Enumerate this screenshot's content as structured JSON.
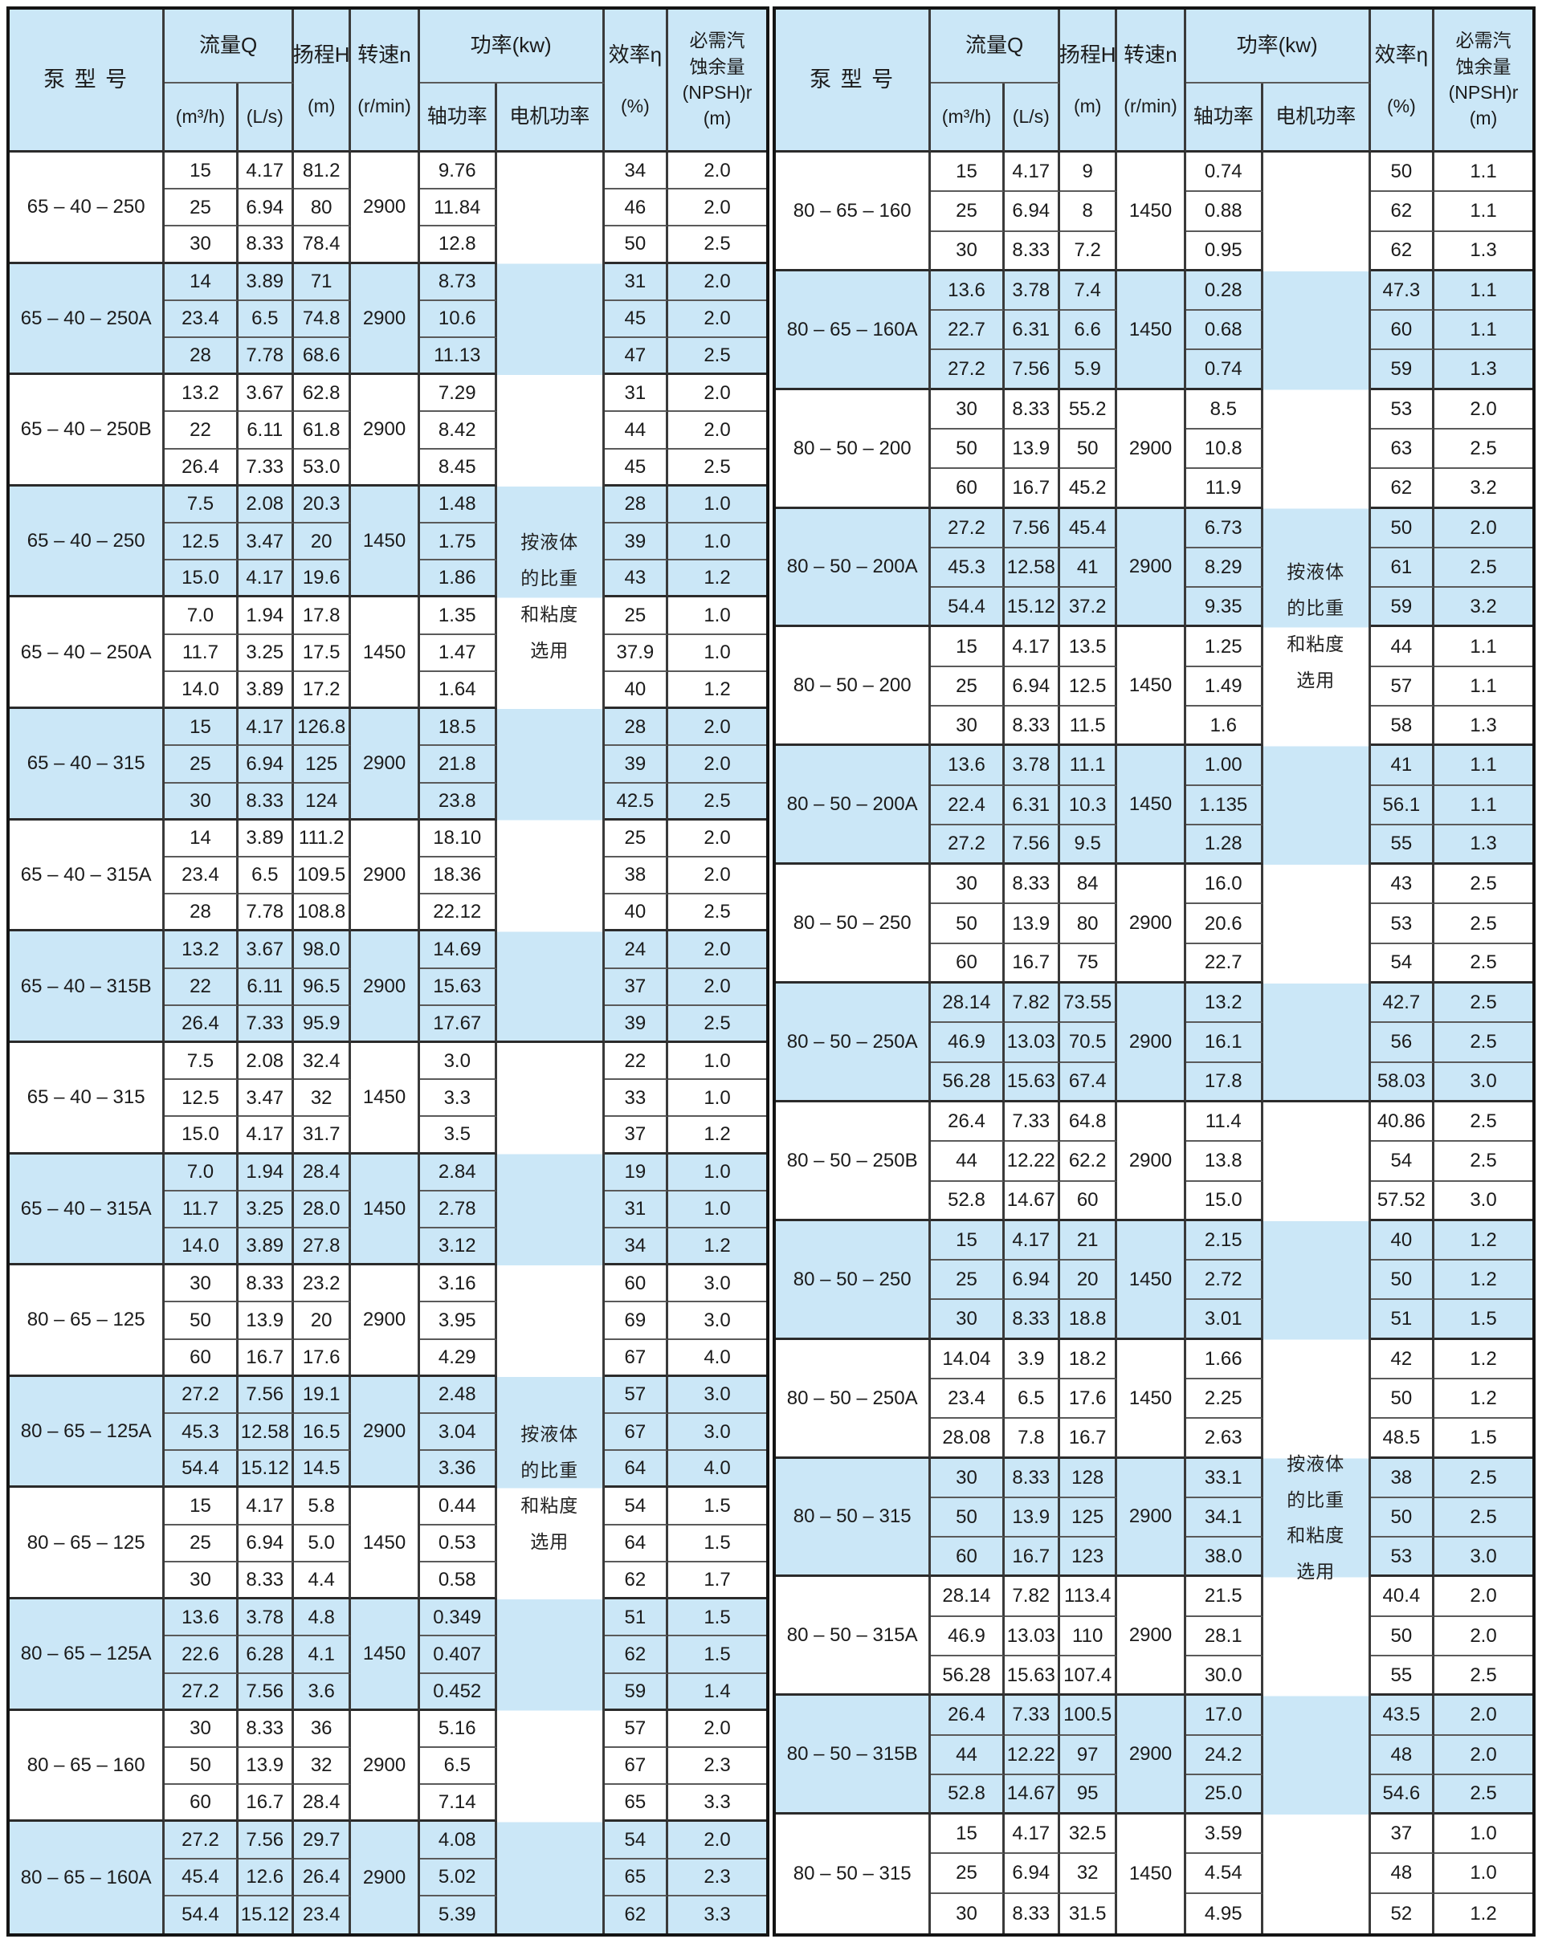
{
  "header": {
    "model": "泵 型 号",
    "flow": "流量Q",
    "flow_m3h": "(m³/h)",
    "flow_ls": "(L/s)",
    "head_title": "扬程H",
    "head_unit": "(m)",
    "speed_title": "转速n",
    "speed_unit": "(r/min)",
    "power": "功率(kw)",
    "shaft": "轴功率",
    "motor": "电机功率",
    "eff_title": "效率η",
    "eff_unit": "(%)",
    "npsh_lines": [
      "必需汽",
      "蚀余量",
      "(NPSH)r",
      "(m)"
    ]
  },
  "motor_note": "按液体的比重和粘度选用",
  "colors": {
    "band_blue": "#cbe7f7",
    "band_white": "#ffffff",
    "border_dark": "#2b2b2b",
    "text": "#1b1b1b"
  },
  "tables": [
    {
      "name": "left",
      "groups": [
        {
          "model": "65 – 40 – 250",
          "speed": "2900",
          "rows": [
            [
              "15",
              "4.17",
              "81.2",
              "9.76",
              "34",
              "2.0"
            ],
            [
              "25",
              "6.94",
              "80",
              "11.84",
              "46",
              "2.0"
            ],
            [
              "30",
              "8.33",
              "78.4",
              "12.8",
              "50",
              "2.5"
            ]
          ]
        },
        {
          "model": "65 – 40 – 250A",
          "speed": "2900",
          "rows": [
            [
              "14",
              "3.89",
              "71",
              "8.73",
              "31",
              "2.0"
            ],
            [
              "23.4",
              "6.5",
              "74.8",
              "10.6",
              "45",
              "2.0"
            ],
            [
              "28",
              "7.78",
              "68.6",
              "11.13",
              "47",
              "2.5"
            ]
          ]
        },
        {
          "model": "65 – 40 – 250B",
          "speed": "2900",
          "rows": [
            [
              "13.2",
              "3.67",
              "62.8",
              "7.29",
              "31",
              "2.0"
            ],
            [
              "22",
              "6.11",
              "61.8",
              "8.42",
              "44",
              "2.0"
            ],
            [
              "26.4",
              "7.33",
              "53.0",
              "8.45",
              "45",
              "2.5"
            ]
          ]
        },
        {
          "model": "65 – 40 – 250",
          "speed": "1450",
          "rows": [
            [
              "7.5",
              "2.08",
              "20.3",
              "1.48",
              "28",
              "1.0"
            ],
            [
              "12.5",
              "3.47",
              "20",
              "1.75",
              "39",
              "1.0"
            ],
            [
              "15.0",
              "4.17",
              "19.6",
              "1.86",
              "43",
              "1.2"
            ]
          ]
        },
        {
          "model": "65 – 40 – 250A",
          "speed": "1450",
          "rows": [
            [
              "7.0",
              "1.94",
              "17.8",
              "1.35",
              "25",
              "1.0"
            ],
            [
              "11.7",
              "3.25",
              "17.5",
              "1.47",
              "37.9",
              "1.0"
            ],
            [
              "14.0",
              "3.89",
              "17.2",
              "1.64",
              "40",
              "1.2"
            ]
          ]
        },
        {
          "model": "65 – 40 – 315",
          "speed": "2900",
          "rows": [
            [
              "15",
              "4.17",
              "126.8",
              "18.5",
              "28",
              "2.0"
            ],
            [
              "25",
              "6.94",
              "125",
              "21.8",
              "39",
              "2.0"
            ],
            [
              "30",
              "8.33",
              "124",
              "23.8",
              "42.5",
              "2.5"
            ]
          ]
        },
        {
          "model": "65 – 40 – 315A",
          "speed": "2900",
          "rows": [
            [
              "14",
              "3.89",
              "111.2",
              "18.10",
              "25",
              "2.0"
            ],
            [
              "23.4",
              "6.5",
              "109.5",
              "18.36",
              "38",
              "2.0"
            ],
            [
              "28",
              "7.78",
              "108.8",
              "22.12",
              "40",
              "2.5"
            ]
          ]
        },
        {
          "model": "65 – 40 – 315B",
          "speed": "2900",
          "rows": [
            [
              "13.2",
              "3.67",
              "98.0",
              "14.69",
              "24",
              "2.0"
            ],
            [
              "22",
              "6.11",
              "96.5",
              "15.63",
              "37",
              "2.0"
            ],
            [
              "26.4",
              "7.33",
              "95.9",
              "17.67",
              "39",
              "2.5"
            ]
          ]
        },
        {
          "model": "65 – 40 – 315",
          "speed": "1450",
          "rows": [
            [
              "7.5",
              "2.08",
              "32.4",
              "3.0",
              "22",
              "1.0"
            ],
            [
              "12.5",
              "3.47",
              "32",
              "3.3",
              "33",
              "1.0"
            ],
            [
              "15.0",
              "4.17",
              "31.7",
              "3.5",
              "37",
              "1.2"
            ]
          ]
        },
        {
          "model": "65 – 40 – 315A",
          "speed": "1450",
          "rows": [
            [
              "7.0",
              "1.94",
              "28.4",
              "2.84",
              "19",
              "1.0"
            ],
            [
              "11.7",
              "3.25",
              "28.0",
              "2.78",
              "31",
              "1.0"
            ],
            [
              "14.0",
              "3.89",
              "27.8",
              "3.12",
              "34",
              "1.2"
            ]
          ]
        },
        {
          "model": "80 – 65 – 125",
          "speed": "2900",
          "rows": [
            [
              "30",
              "8.33",
              "23.2",
              "3.16",
              "60",
              "3.0"
            ],
            [
              "50",
              "13.9",
              "20",
              "3.95",
              "69",
              "3.0"
            ],
            [
              "60",
              "16.7",
              "17.6",
              "4.29",
              "67",
              "4.0"
            ]
          ]
        },
        {
          "model": "80 – 65 – 125A",
          "speed": "2900",
          "rows": [
            [
              "27.2",
              "7.56",
              "19.1",
              "2.48",
              "57",
              "3.0"
            ],
            [
              "45.3",
              "12.58",
              "16.5",
              "3.04",
              "67",
              "3.0"
            ],
            [
              "54.4",
              "15.12",
              "14.5",
              "3.36",
              "64",
              "4.0"
            ]
          ]
        },
        {
          "model": "80 – 65 – 125",
          "speed": "1450",
          "rows": [
            [
              "15",
              "4.17",
              "5.8",
              "0.44",
              "54",
              "1.5"
            ],
            [
              "25",
              "6.94",
              "5.0",
              "0.53",
              "64",
              "1.5"
            ],
            [
              "30",
              "8.33",
              "4.4",
              "0.58",
              "62",
              "1.7"
            ]
          ]
        },
        {
          "model": "80 – 65 – 125A",
          "speed": "1450",
          "rows": [
            [
              "13.6",
              "3.78",
              "4.8",
              "0.349",
              "51",
              "1.5"
            ],
            [
              "22.6",
              "6.28",
              "4.1",
              "0.407",
              "62",
              "1.5"
            ],
            [
              "27.2",
              "7.56",
              "3.6",
              "0.452",
              "59",
              "1.4"
            ]
          ]
        },
        {
          "model": "80 – 65 – 160",
          "speed": "2900",
          "rows": [
            [
              "30",
              "8.33",
              "36",
              "5.16",
              "57",
              "2.0"
            ],
            [
              "50",
              "13.9",
              "32",
              "6.5",
              "67",
              "2.3"
            ],
            [
              "60",
              "16.7",
              "28.4",
              "7.14",
              "65",
              "3.3"
            ]
          ]
        },
        {
          "model": "80 – 65 – 160A",
          "speed": "2900",
          "rows": [
            [
              "27.2",
              "7.56",
              "29.7",
              "4.08",
              "54",
              "2.0"
            ],
            [
              "45.4",
              "12.6",
              "26.4",
              "5.02",
              "65",
              "2.3"
            ],
            [
              "54.4",
              "15.12",
              "23.4",
              "5.39",
              "62",
              "3.3"
            ]
          ]
        }
      ]
    },
    {
      "name": "right",
      "groups": [
        {
          "model": "80 – 65 – 160",
          "speed": "1450",
          "rows": [
            [
              "15",
              "4.17",
              "9",
              "0.74",
              "50",
              "1.1"
            ],
            [
              "25",
              "6.94",
              "8",
              "0.88",
              "62",
              "1.1"
            ],
            [
              "30",
              "8.33",
              "7.2",
              "0.95",
              "62",
              "1.3"
            ]
          ]
        },
        {
          "model": "80 – 65 – 160A",
          "speed": "1450",
          "rows": [
            [
              "13.6",
              "3.78",
              "7.4",
              "0.28",
              "47.3",
              "1.1"
            ],
            [
              "22.7",
              "6.31",
              "6.6",
              "0.68",
              "60",
              "1.1"
            ],
            [
              "27.2",
              "7.56",
              "5.9",
              "0.74",
              "59",
              "1.3"
            ]
          ]
        },
        {
          "model": "80 – 50 – 200",
          "speed": "2900",
          "rows": [
            [
              "30",
              "8.33",
              "55.2",
              "8.5",
              "53",
              "2.0"
            ],
            [
              "50",
              "13.9",
              "50",
              "10.8",
              "63",
              "2.5"
            ],
            [
              "60",
              "16.7",
              "45.2",
              "11.9",
              "62",
              "3.2"
            ]
          ]
        },
        {
          "model": "80 – 50 – 200A",
          "speed": "2900",
          "rows": [
            [
              "27.2",
              "7.56",
              "45.4",
              "6.73",
              "50",
              "2.0"
            ],
            [
              "45.3",
              "12.58",
              "41",
              "8.29",
              "61",
              "2.5"
            ],
            [
              "54.4",
              "15.12",
              "37.2",
              "9.35",
              "59",
              "3.2"
            ]
          ]
        },
        {
          "model": "80 – 50 – 200",
          "speed": "1450",
          "rows": [
            [
              "15",
              "4.17",
              "13.5",
              "1.25",
              "44",
              "1.1"
            ],
            [
              "25",
              "6.94",
              "12.5",
              "1.49",
              "57",
              "1.1"
            ],
            [
              "30",
              "8.33",
              "11.5",
              "1.6",
              "58",
              "1.3"
            ]
          ]
        },
        {
          "model": "80 – 50 – 200A",
          "speed": "1450",
          "rows": [
            [
              "13.6",
              "3.78",
              "11.1",
              "1.00",
              "41",
              "1.1"
            ],
            [
              "22.4",
              "6.31",
              "10.3",
              "1.135",
              "56.1",
              "1.1"
            ],
            [
              "27.2",
              "7.56",
              "9.5",
              "1.28",
              "55",
              "1.3"
            ]
          ]
        },
        {
          "model": "80 – 50 – 250",
          "speed": "2900",
          "rows": [
            [
              "30",
              "8.33",
              "84",
              "16.0",
              "43",
              "2.5"
            ],
            [
              "50",
              "13.9",
              "80",
              "20.6",
              "53",
              "2.5"
            ],
            [
              "60",
              "16.7",
              "75",
              "22.7",
              "54",
              "2.5"
            ]
          ]
        },
        {
          "model": "80 – 50 – 250A",
          "speed": "2900",
          "rows": [
            [
              "28.14",
              "7.82",
              "73.55",
              "13.2",
              "42.7",
              "2.5"
            ],
            [
              "46.9",
              "13.03",
              "70.5",
              "16.1",
              "56",
              "2.5"
            ],
            [
              "56.28",
              "15.63",
              "67.4",
              "17.8",
              "58.03",
              "3.0"
            ]
          ]
        },
        {
          "model": "80 – 50 – 250B",
          "speed": "2900",
          "rows": [
            [
              "26.4",
              "7.33",
              "64.8",
              "11.4",
              "40.86",
              "2.5"
            ],
            [
              "44",
              "12.22",
              "62.2",
              "13.8",
              "54",
              "2.5"
            ],
            [
              "52.8",
              "14.67",
              "60",
              "15.0",
              "57.52",
              "3.0"
            ]
          ]
        },
        {
          "model": "80 – 50 – 250",
          "speed": "1450",
          "rows": [
            [
              "15",
              "4.17",
              "21",
              "2.15",
              "40",
              "1.2"
            ],
            [
              "25",
              "6.94",
              "20",
              "2.72",
              "50",
              "1.2"
            ],
            [
              "30",
              "8.33",
              "18.8",
              "3.01",
              "51",
              "1.5"
            ]
          ]
        },
        {
          "model": "80 – 50 – 250A",
          "speed": "1450",
          "rows": [
            [
              "14.04",
              "3.9",
              "18.2",
              "1.66",
              "42",
              "1.2"
            ],
            [
              "23.4",
              "6.5",
              "17.6",
              "2.25",
              "50",
              "1.2"
            ],
            [
              "28.08",
              "7.8",
              "16.7",
              "2.63",
              "48.5",
              "1.5"
            ]
          ]
        },
        {
          "model": "80 – 50 – 315",
          "speed": "2900",
          "rows": [
            [
              "30",
              "8.33",
              "128",
              "33.1",
              "38",
              "2.5"
            ],
            [
              "50",
              "13.9",
              "125",
              "34.1",
              "50",
              "2.5"
            ],
            [
              "60",
              "16.7",
              "123",
              "38.0",
              "53",
              "3.0"
            ]
          ]
        },
        {
          "model": "80 – 50 – 315A",
          "speed": "2900",
          "rows": [
            [
              "28.14",
              "7.82",
              "113.4",
              "21.5",
              "40.4",
              "2.0"
            ],
            [
              "46.9",
              "13.03",
              "110",
              "28.1",
              "50",
              "2.0"
            ],
            [
              "56.28",
              "15.63",
              "107.4",
              "30.0",
              "55",
              "2.5"
            ]
          ]
        },
        {
          "model": "80 – 50 – 315B",
          "speed": "2900",
          "rows": [
            [
              "26.4",
              "7.33",
              "100.5",
              "17.0",
              "43.5",
              "2.0"
            ],
            [
              "44",
              "12.22",
              "97",
              "24.2",
              "48",
              "2.0"
            ],
            [
              "52.8",
              "14.67",
              "95",
              "25.0",
              "54.6",
              "2.5"
            ]
          ]
        },
        {
          "model": "80 – 50 – 315",
          "speed": "1450",
          "rows": [
            [
              "15",
              "4.17",
              "32.5",
              "3.59",
              "37",
              "1.0"
            ],
            [
              "25",
              "6.94",
              "32",
              "4.54",
              "48",
              "1.0"
            ],
            [
              "30",
              "8.33",
              "31.5",
              "4.95",
              "52",
              "1.2"
            ]
          ]
        }
      ]
    }
  ]
}
